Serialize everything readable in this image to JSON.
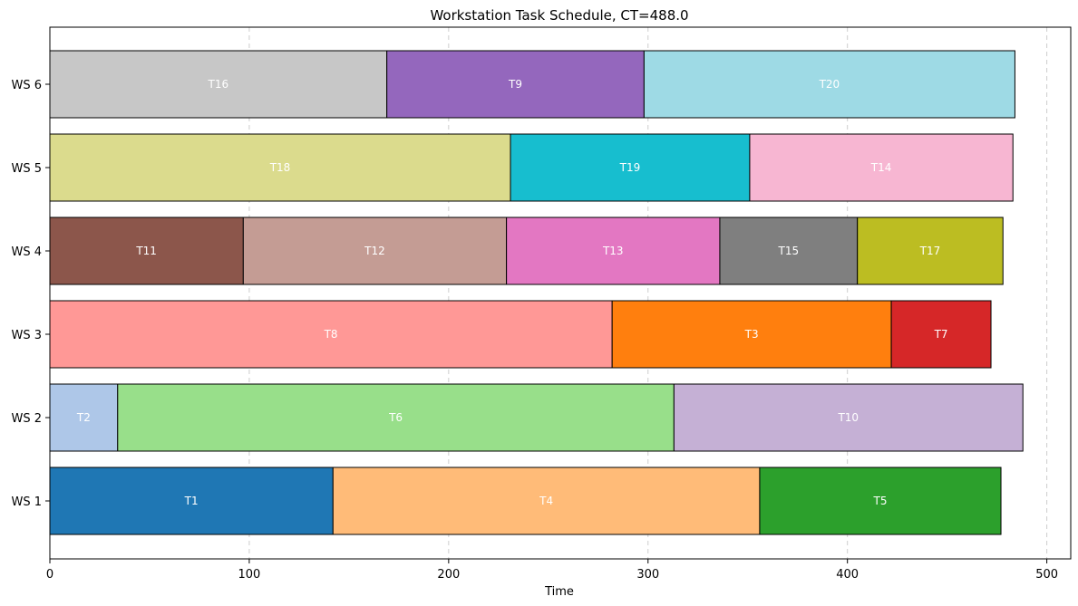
{
  "chart_data": {
    "type": "gantt",
    "title": "Workstation Task Schedule, CT=488.0",
    "xlabel": "Time",
    "ylabel": "",
    "xlim": [
      0,
      512
    ],
    "xticks": [
      0,
      100,
      200,
      300,
      400,
      500
    ],
    "grid": "x-axis dashed",
    "workstations": [
      "WS 1",
      "WS 2",
      "WS 3",
      "WS 4",
      "WS 5",
      "WS 6"
    ],
    "tasks": [
      {
        "ws": "WS 1",
        "label": "T1",
        "start": 0,
        "end": 142,
        "color": "#1f77b4"
      },
      {
        "ws": "WS 1",
        "label": "T4",
        "start": 142,
        "end": 356,
        "color": "#ffbb78"
      },
      {
        "ws": "WS 1",
        "label": "T5",
        "start": 356,
        "end": 477,
        "color": "#2ca02c"
      },
      {
        "ws": "WS 2",
        "label": "T2",
        "start": 0,
        "end": 34,
        "color": "#aec7e8"
      },
      {
        "ws": "WS 2",
        "label": "T6",
        "start": 34,
        "end": 313,
        "color": "#98df8a"
      },
      {
        "ws": "WS 2",
        "label": "T10",
        "start": 313,
        "end": 488,
        "color": "#c5b0d5"
      },
      {
        "ws": "WS 3",
        "label": "T8",
        "start": 0,
        "end": 282,
        "color": "#ff9896"
      },
      {
        "ws": "WS 3",
        "label": "T3",
        "start": 282,
        "end": 422,
        "color": "#ff7f0e"
      },
      {
        "ws": "WS 3",
        "label": "T7",
        "start": 422,
        "end": 472,
        "color": "#d62728"
      },
      {
        "ws": "WS 4",
        "label": "T11",
        "start": 0,
        "end": 97,
        "color": "#8c564b"
      },
      {
        "ws": "WS 4",
        "label": "T12",
        "start": 97,
        "end": 229,
        "color": "#c49c94"
      },
      {
        "ws": "WS 4",
        "label": "T13",
        "start": 229,
        "end": 336,
        "color": "#e377c2"
      },
      {
        "ws": "WS 4",
        "label": "T15",
        "start": 336,
        "end": 405,
        "color": "#7f7f7f"
      },
      {
        "ws": "WS 4",
        "label": "T17",
        "start": 405,
        "end": 478,
        "color": "#bcbd22"
      },
      {
        "ws": "WS 5",
        "label": "T18",
        "start": 0,
        "end": 231,
        "color": "#dbdb8d"
      },
      {
        "ws": "WS 5",
        "label": "T19",
        "start": 231,
        "end": 351,
        "color": "#17becf"
      },
      {
        "ws": "WS 5",
        "label": "T14",
        "start": 351,
        "end": 483,
        "color": "#f7b6d2"
      },
      {
        "ws": "WS 6",
        "label": "T16",
        "start": 0,
        "end": 169,
        "color": "#c7c7c7"
      },
      {
        "ws": "WS 6",
        "label": "T9",
        "start": 169,
        "end": 298,
        "color": "#9467bd"
      },
      {
        "ws": "WS 6",
        "label": "T20",
        "start": 298,
        "end": 484,
        "color": "#9edae5"
      }
    ]
  }
}
